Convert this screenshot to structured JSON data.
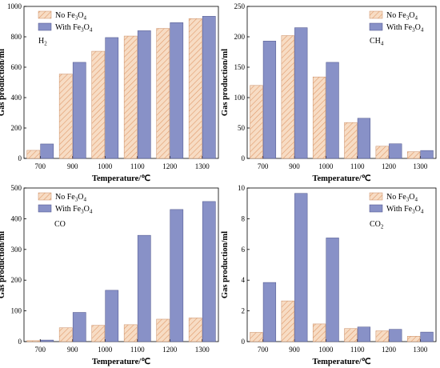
{
  "colors": {
    "no_fe3o4_fill": "#f7dcc4",
    "no_fe3o4_hatch": "#e09a6a",
    "with_fe3o4": "#8891c7",
    "with_fe3o4_edge": "#4a5088"
  },
  "chart_data": [
    {
      "type": "bar",
      "gas_label": "H",
      "gas_sub": "2",
      "xlabel": "Temperature/℃",
      "ylabel": "Gas production/ml",
      "categories": [
        "700",
        "900",
        "1000",
        "1100",
        "1200",
        "1300"
      ],
      "ylim": [
        0,
        1000
      ],
      "yticks": [
        "0",
        "200",
        "400",
        "600",
        "800",
        "1000"
      ],
      "legend_position": "top-left",
      "series": [
        {
          "name": "No Fe3O4",
          "values": [
            53,
            555,
            705,
            805,
            855,
            920
          ]
        },
        {
          "name": "With Fe3O4",
          "values": [
            95,
            632,
            795,
            840,
            893,
            935
          ]
        }
      ]
    },
    {
      "type": "bar",
      "gas_label": "CH",
      "gas_sub": "4",
      "xlabel": "Temperature/℃",
      "ylabel": "Gas production/ml",
      "categories": [
        "700",
        "900",
        "1000",
        "1100",
        "1200",
        "1300"
      ],
      "ylim": [
        0,
        250
      ],
      "yticks": [
        "0",
        "50",
        "100",
        "150",
        "200",
        "250"
      ],
      "legend_position": "top-right",
      "series": [
        {
          "name": "No Fe3O4",
          "values": [
            120,
            202,
            134,
            59,
            20,
            11
          ]
        },
        {
          "name": "With Fe3O4",
          "values": [
            193,
            215,
            158,
            66,
            24,
            13
          ]
        }
      ]
    },
    {
      "type": "bar",
      "gas_label": "CO",
      "gas_sub": "",
      "xlabel": "Temperature/℃",
      "ylabel": "Gas production/ml",
      "categories": [
        "700",
        "900",
        "1000",
        "1100",
        "1200",
        "1300"
      ],
      "ylim": [
        0,
        500
      ],
      "yticks": [
        "0",
        "100",
        "200",
        "300",
        "400",
        "500"
      ],
      "legend_position": "top-left",
      "series": [
        {
          "name": "No Fe3O4",
          "values": [
            3,
            45,
            53,
            55,
            73,
            77
          ]
        },
        {
          "name": "With Fe3O4",
          "values": [
            5,
            95,
            167,
            346,
            430,
            456
          ]
        }
      ]
    },
    {
      "type": "bar",
      "gas_label": "CO",
      "gas_sub": "2",
      "xlabel": "Temperature/℃",
      "ylabel": "Gas production/ml",
      "categories": [
        "700",
        "900",
        "1000",
        "1100",
        "1200",
        "1300"
      ],
      "ylim": [
        0,
        10
      ],
      "yticks": [
        "0",
        "2",
        "4",
        "6",
        "8",
        "10"
      ],
      "legend_position": "top-right",
      "series": [
        {
          "name": "No Fe3O4",
          "values": [
            0.6,
            2.65,
            1.15,
            0.85,
            0.7,
            0.35
          ]
        },
        {
          "name": "With Fe3O4",
          "values": [
            3.85,
            9.65,
            6.75,
            0.95,
            0.8,
            0.62
          ]
        }
      ]
    }
  ]
}
